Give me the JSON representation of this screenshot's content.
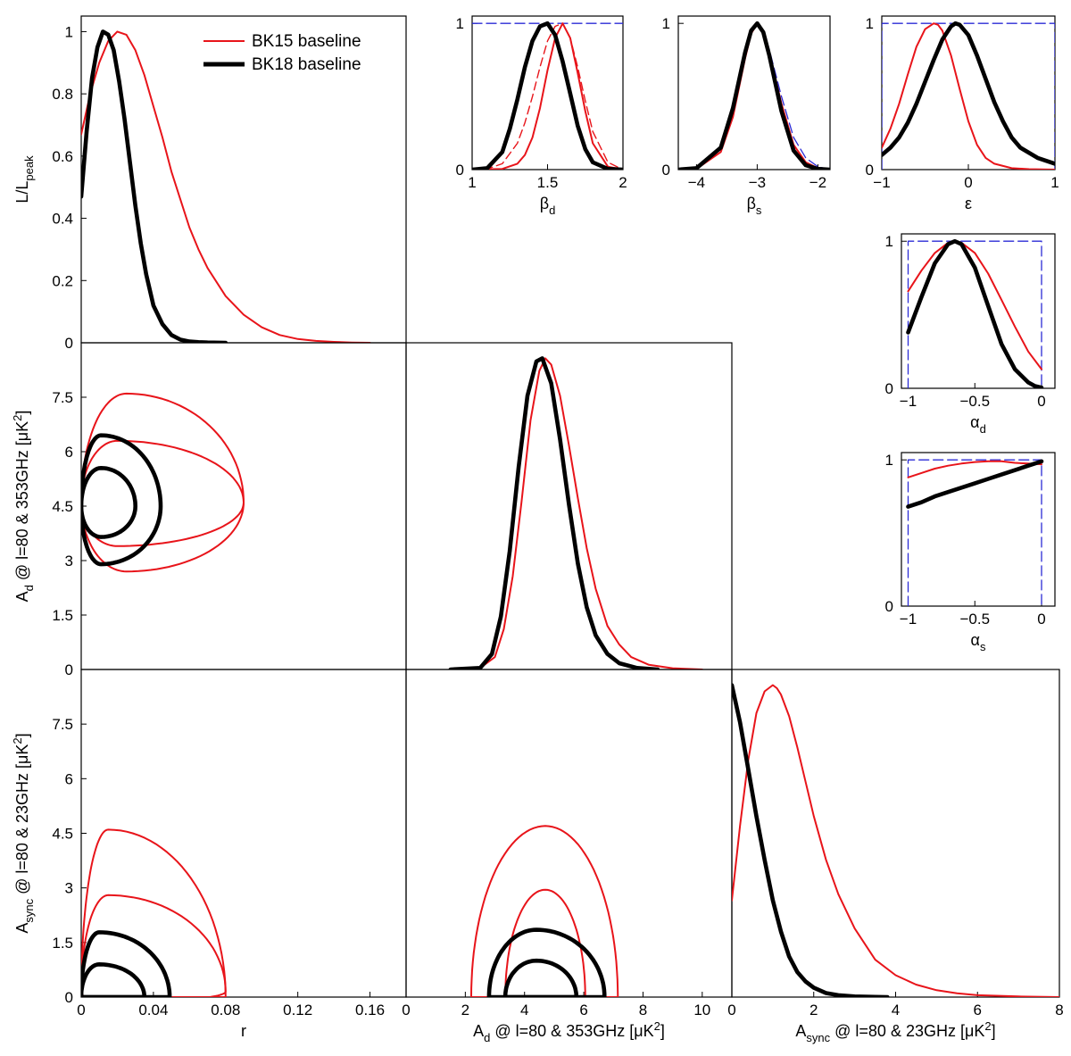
{
  "colors": {
    "bk15": "#e8141a",
    "bk18": "#000000",
    "prior": "#2b2bd6"
  },
  "legend": {
    "bk15": "BK15 baseline",
    "bk18": "BK18 baseline"
  },
  "chart_data": [
    {
      "id": "r-1d",
      "type": "line",
      "xlim": [
        0,
        0.18
      ],
      "ylim": [
        0,
        1.05
      ],
      "xticks": [],
      "yticks": [
        "0",
        "0.2",
        "0.4",
        "0.6",
        "0.8",
        "1"
      ],
      "ylabel": "L/L",
      "ylabel_sub": "peak",
      "series": [
        {
          "name": "BK15 baseline",
          "style": "bk15",
          "x": [
            0,
            0.005,
            0.01,
            0.015,
            0.02,
            0.025,
            0.03,
            0.035,
            0.04,
            0.045,
            0.05,
            0.055,
            0.06,
            0.065,
            0.07,
            0.08,
            0.09,
            0.1,
            0.11,
            0.12,
            0.13,
            0.14,
            0.15,
            0.16
          ],
          "y": [
            0.67,
            0.8,
            0.9,
            0.97,
            1.0,
            0.99,
            0.94,
            0.86,
            0.76,
            0.66,
            0.55,
            0.46,
            0.37,
            0.3,
            0.24,
            0.15,
            0.09,
            0.05,
            0.025,
            0.012,
            0.006,
            0.003,
            0.001,
            0
          ]
        },
        {
          "name": "BK18 baseline",
          "style": "bk18",
          "x": [
            0,
            0.003,
            0.006,
            0.009,
            0.012,
            0.015,
            0.018,
            0.021,
            0.024,
            0.027,
            0.03,
            0.033,
            0.036,
            0.04,
            0.045,
            0.05,
            0.055,
            0.06,
            0.065,
            0.07,
            0.08
          ],
          "y": [
            0.47,
            0.68,
            0.85,
            0.95,
            1.0,
            0.99,
            0.94,
            0.84,
            0.72,
            0.58,
            0.44,
            0.32,
            0.22,
            0.12,
            0.06,
            0.025,
            0.01,
            0.004,
            0.002,
            0.001,
            0
          ]
        }
      ]
    },
    {
      "id": "beta-d",
      "type": "line",
      "xlim": [
        1,
        2
      ],
      "ylim": [
        0,
        1.05
      ],
      "xticks": [
        "1",
        "1.5",
        "2"
      ],
      "yticks": [
        "0",
        "1"
      ],
      "xlabel": "β",
      "xlabel_sub": "d",
      "series": [
        {
          "style": "prior",
          "x": [
            1,
            2
          ],
          "y": [
            1,
            1
          ]
        },
        {
          "style": "bk15dash",
          "x": [
            1.0,
            1.1,
            1.2,
            1.3,
            1.35,
            1.4,
            1.45,
            1.5,
            1.55,
            1.6,
            1.65,
            1.7,
            1.75,
            1.8,
            1.9,
            2.0
          ],
          "y": [
            0,
            0.005,
            0.04,
            0.18,
            0.32,
            0.5,
            0.7,
            0.88,
            0.98,
            1.0,
            0.9,
            0.7,
            0.47,
            0.26,
            0.05,
            0
          ]
        },
        {
          "style": "bk15",
          "x": [
            1.0,
            1.2,
            1.3,
            1.35,
            1.4,
            1.45,
            1.5,
            1.55,
            1.6,
            1.65,
            1.7,
            1.75,
            1.8,
            1.9,
            2.0
          ],
          "y": [
            0,
            0.005,
            0.04,
            0.1,
            0.22,
            0.42,
            0.68,
            0.9,
            1.0,
            0.9,
            0.66,
            0.4,
            0.18,
            0.02,
            0
          ]
        },
        {
          "style": "bk18",
          "x": [
            1.0,
            1.1,
            1.2,
            1.25,
            1.3,
            1.35,
            1.4,
            1.45,
            1.5,
            1.55,
            1.6,
            1.65,
            1.7,
            1.75,
            1.8,
            1.9,
            2.0
          ],
          "y": [
            0,
            0.01,
            0.12,
            0.28,
            0.48,
            0.7,
            0.88,
            0.98,
            1.0,
            0.92,
            0.74,
            0.52,
            0.3,
            0.14,
            0.05,
            0.005,
            0
          ]
        }
      ]
    },
    {
      "id": "beta-s",
      "type": "line",
      "xlim": [
        -4.3,
        -1.8
      ],
      "ylim": [
        0,
        1.05
      ],
      "xticks": [
        "−4",
        "−3",
        "−2"
      ],
      "yticks": [
        "0",
        "1"
      ],
      "xlabel": "β",
      "xlabel_sub": "s",
      "series": [
        {
          "style": "prior",
          "x": [
            -4.3,
            -4.0,
            -3.6,
            -3.4,
            -3.2,
            -3.1,
            -3.0,
            -2.9,
            -2.8,
            -2.6,
            -2.4,
            -2.2,
            -2.0,
            -1.8
          ],
          "y": [
            0,
            0.01,
            0.15,
            0.4,
            0.78,
            0.93,
            1.0,
            0.95,
            0.82,
            0.5,
            0.22,
            0.08,
            0.02,
            0
          ]
        },
        {
          "style": "bk15",
          "x": [
            -4.3,
            -4.0,
            -3.6,
            -3.4,
            -3.2,
            -3.1,
            -3.0,
            -2.9,
            -2.8,
            -2.6,
            -2.4,
            -2.2,
            -2.0,
            -1.8
          ],
          "y": [
            0,
            0.005,
            0.12,
            0.36,
            0.76,
            0.93,
            1.0,
            0.95,
            0.8,
            0.45,
            0.17,
            0.05,
            0.01,
            0
          ]
        },
        {
          "style": "bk18",
          "x": [
            -4.3,
            -4.0,
            -3.6,
            -3.4,
            -3.2,
            -3.1,
            -3.0,
            -2.9,
            -2.8,
            -2.6,
            -2.4,
            -2.2,
            -2.0,
            -1.8
          ],
          "y": [
            0,
            0.01,
            0.15,
            0.42,
            0.8,
            0.95,
            1.0,
            0.94,
            0.78,
            0.4,
            0.13,
            0.03,
            0.005,
            0
          ]
        }
      ]
    },
    {
      "id": "epsilon",
      "type": "line",
      "xlim": [
        -1,
        1
      ],
      "ylim": [
        0,
        1.05
      ],
      "xticks": [
        "−1",
        "0",
        "1"
      ],
      "yticks": [
        "0",
        "1"
      ],
      "xlabel": "ε",
      "series": [
        {
          "style": "prior",
          "x": [
            -1,
            -1,
            1,
            1
          ],
          "y": [
            0,
            1,
            1,
            0
          ]
        },
        {
          "style": "bk15",
          "x": [
            -1.0,
            -0.9,
            -0.8,
            -0.7,
            -0.6,
            -0.5,
            -0.4,
            -0.35,
            -0.3,
            -0.2,
            -0.1,
            0.0,
            0.1,
            0.2,
            0.3,
            0.5,
            0.7,
            1.0
          ],
          "y": [
            0.15,
            0.28,
            0.45,
            0.65,
            0.84,
            0.96,
            1.0,
            0.99,
            0.95,
            0.78,
            0.55,
            0.33,
            0.17,
            0.08,
            0.04,
            0.01,
            0.003,
            0
          ]
        },
        {
          "style": "bk18",
          "x": [
            -1.0,
            -0.9,
            -0.8,
            -0.7,
            -0.6,
            -0.5,
            -0.4,
            -0.3,
            -0.2,
            -0.15,
            -0.1,
            0.0,
            0.1,
            0.2,
            0.3,
            0.4,
            0.5,
            0.6,
            0.8,
            1.0
          ],
          "y": [
            0.1,
            0.15,
            0.22,
            0.32,
            0.45,
            0.6,
            0.75,
            0.89,
            0.98,
            1.0,
            0.99,
            0.92,
            0.78,
            0.62,
            0.46,
            0.33,
            0.22,
            0.15,
            0.08,
            0.04
          ]
        }
      ]
    },
    {
      "id": "alpha-d",
      "type": "line",
      "xlim": [
        -1.05,
        0.1
      ],
      "ylim": [
        0,
        1.05
      ],
      "xticks": [
        "−1",
        "−0.5",
        "0"
      ],
      "yticks": [
        "0",
        "1"
      ],
      "xlabel": "α",
      "xlabel_sub": "d",
      "series": [
        {
          "style": "prior",
          "x": [
            -1,
            -1,
            0,
            0
          ],
          "y": [
            0,
            1,
            1,
            0
          ]
        },
        {
          "style": "bk15",
          "x": [
            -1.0,
            -0.9,
            -0.8,
            -0.7,
            -0.65,
            -0.6,
            -0.5,
            -0.4,
            -0.3,
            -0.2,
            -0.1,
            0.0
          ],
          "y": [
            0.66,
            0.8,
            0.92,
            0.99,
            1.0,
            0.99,
            0.92,
            0.78,
            0.6,
            0.42,
            0.25,
            0.13
          ]
        },
        {
          "style": "bk18",
          "x": [
            -1.0,
            -0.9,
            -0.8,
            -0.7,
            -0.65,
            -0.6,
            -0.5,
            -0.4,
            -0.3,
            -0.2,
            -0.1,
            -0.05,
            0.0
          ],
          "y": [
            0.38,
            0.62,
            0.85,
            0.98,
            1.0,
            0.98,
            0.82,
            0.56,
            0.3,
            0.13,
            0.04,
            0.015,
            0.005
          ]
        }
      ]
    },
    {
      "id": "alpha-s",
      "type": "line",
      "xlim": [
        -1.05,
        0.1
      ],
      "ylim": [
        0,
        1.05
      ],
      "xticks": [
        "−1",
        "−0.5",
        "0"
      ],
      "yticks": [
        "0",
        "1"
      ],
      "xlabel": "α",
      "xlabel_sub": "s",
      "series": [
        {
          "style": "prior",
          "x": [
            -1,
            -1,
            0,
            0
          ],
          "y": [
            0,
            1,
            1,
            0
          ]
        },
        {
          "style": "bk15",
          "x": [
            -1.0,
            -0.9,
            -0.8,
            -0.7,
            -0.6,
            -0.5,
            -0.4,
            -0.3,
            -0.2,
            -0.1,
            0.0
          ],
          "y": [
            0.88,
            0.91,
            0.94,
            0.96,
            0.975,
            0.985,
            0.99,
            0.99,
            0.98,
            0.975,
            0.97
          ]
        },
        {
          "style": "bk18",
          "x": [
            -1.0,
            -0.9,
            -0.8,
            -0.7,
            -0.6,
            -0.5,
            -0.4,
            -0.3,
            -0.2,
            -0.1,
            0.0
          ],
          "y": [
            0.68,
            0.71,
            0.75,
            0.78,
            0.81,
            0.84,
            0.87,
            0.9,
            0.93,
            0.96,
            0.99
          ]
        }
      ]
    },
    {
      "id": "Ad-vs-r",
      "type": "contour",
      "xlim": [
        0,
        0.18
      ],
      "ylim": [
        0,
        9
      ],
      "xticks": [],
      "yticks": [
        "0",
        "1.5",
        "3",
        "4.5",
        "6",
        "7.5"
      ],
      "ylabel": "A  @ l=80 & 353GHz [μK ]",
      "ylabel_sub": "d",
      "contours": [
        {
          "style": "bk15",
          "cx": 0.02,
          "cy": 4.6,
          "rx_pos": 0.07,
          "rx_neg": 0.02,
          "ry_pos": 1.7,
          "ry_neg": 1.2,
          "x_at_zero": 0
        },
        {
          "style": "bk15",
          "cx": 0.025,
          "cy": 4.6,
          "rx_pos": 0.065,
          "rx_neg": 0.025,
          "ry_pos": 3.0,
          "ry_neg": 1.9,
          "x_at_zero": 0
        },
        {
          "style": "bk18",
          "cx": 0.011,
          "cy": 4.5,
          "rx_pos": 0.019,
          "rx_neg": 0.011,
          "ry_pos": 1.05,
          "ry_neg": 0.85,
          "x_at_zero": 0
        },
        {
          "style": "bk18",
          "cx": 0.011,
          "cy": 4.5,
          "rx_pos": 0.033,
          "rx_neg": 0.011,
          "ry_pos": 1.95,
          "ry_neg": 1.6,
          "x_at_zero": 0
        }
      ]
    },
    {
      "id": "Ad-1d",
      "type": "line",
      "xlim": [
        0,
        11
      ],
      "ylim": [
        0,
        1.05
      ],
      "xticks": [],
      "yticks": [],
      "series": [
        {
          "style": "bk15",
          "x": [
            1.5,
            2.5,
            3.0,
            3.3,
            3.6,
            3.9,
            4.2,
            4.5,
            4.7,
            4.9,
            5.2,
            5.5,
            5.8,
            6.1,
            6.4,
            6.8,
            7.2,
            7.6,
            8.2,
            9.0,
            10.0
          ],
          "y": [
            0,
            0.005,
            0.04,
            0.13,
            0.3,
            0.54,
            0.8,
            0.96,
            1.0,
            0.98,
            0.88,
            0.72,
            0.55,
            0.39,
            0.26,
            0.14,
            0.08,
            0.04,
            0.015,
            0.004,
            0
          ]
        },
        {
          "style": "bk18",
          "x": [
            1.5,
            2.5,
            2.9,
            3.2,
            3.5,
            3.8,
            4.1,
            4.4,
            4.6,
            4.9,
            5.2,
            5.5,
            5.8,
            6.1,
            6.4,
            6.8,
            7.2,
            7.8,
            8.5
          ],
          "y": [
            0,
            0.005,
            0.05,
            0.17,
            0.38,
            0.65,
            0.88,
            0.99,
            1.0,
            0.92,
            0.74,
            0.53,
            0.34,
            0.2,
            0.11,
            0.05,
            0.02,
            0.005,
            0
          ]
        }
      ]
    },
    {
      "id": "Async-vs-r",
      "type": "contour",
      "xlim": [
        0,
        0.18
      ],
      "ylim": [
        0,
        9
      ],
      "xticks": [
        "0",
        "0.04",
        "0.08",
        "0.12",
        "0.16"
      ],
      "yticks": [
        "0",
        "1.5",
        "3",
        "4.5",
        "6",
        "7.5"
      ],
      "xlabel": "r",
      "ylabel": "A  @ l=80 & 23GHz [μK ]",
      "ylabel_sub": "sync",
      "contours": [
        {
          "style": "bk15",
          "cx": 0.015,
          "cy": 0.15,
          "rx_pos": 0.065,
          "rx_neg": 0.015,
          "ry_pos": 2.65,
          "ry_neg": 0.3,
          "x_at_zero": 0
        },
        {
          "style": "bk15",
          "cx": 0.015,
          "cy": 0,
          "rx_pos": 0.065,
          "rx_neg": 0.015,
          "ry_pos": 4.6,
          "ry_neg": 0,
          "x_at_zero": 0
        },
        {
          "style": "bk18",
          "cx": 0.01,
          "cy": 0,
          "rx_pos": 0.025,
          "rx_neg": 0.01,
          "ry_pos": 0.9,
          "ry_neg": 0,
          "x_at_zero": 0
        },
        {
          "style": "bk18",
          "cx": 0.01,
          "cy": 0,
          "rx_pos": 0.039,
          "rx_neg": 0.01,
          "ry_pos": 1.78,
          "ry_neg": 0,
          "x_at_zero": 0
        }
      ]
    },
    {
      "id": "Async-vs-Ad",
      "type": "contour",
      "xlim": [
        0,
        11
      ],
      "ylim": [
        0,
        9
      ],
      "xticks": [
        "0",
        "2",
        "4",
        "6",
        "8",
        "10"
      ],
      "yticks": [],
      "xlabel": "A  @ l=80 & 353GHz [μK ]",
      "xlabel_sub": "d",
      "contours": [
        {
          "style": "bk15",
          "cx": 4.7,
          "cy": 0,
          "rx_pos": 1.35,
          "rx_neg": 1.35,
          "ry_pos": 2.95,
          "ry_neg": 0
        },
        {
          "style": "bk15",
          "cx": 4.7,
          "cy": 0,
          "rx_pos": 2.45,
          "rx_neg": 2.5,
          "ry_pos": 4.7,
          "ry_neg": 0
        },
        {
          "style": "bk18",
          "cx": 4.4,
          "cy": 0,
          "rx_pos": 1.35,
          "rx_neg": 1.05,
          "ry_pos": 1.0,
          "ry_neg": 0
        },
        {
          "style": "bk18",
          "cx": 4.4,
          "cy": 0,
          "rx_pos": 2.3,
          "rx_neg": 1.6,
          "ry_pos": 1.85,
          "ry_neg": 0
        }
      ]
    },
    {
      "id": "Async-1d",
      "type": "line",
      "xlim": [
        0,
        8
      ],
      "ylim": [
        0,
        1.05
      ],
      "xticks": [
        "0",
        "2",
        "4",
        "6",
        "8"
      ],
      "yticks": [],
      "xlabel": "A  @ l=80 & 23GHz [μK ]",
      "xlabel_sub": "sync",
      "series": [
        {
          "style": "bk15",
          "x": [
            0,
            0.2,
            0.4,
            0.6,
            0.8,
            1.0,
            1.1,
            1.2,
            1.4,
            1.6,
            1.8,
            2.0,
            2.3,
            2.6,
            3.0,
            3.5,
            4.0,
            4.5,
            5.0,
            5.5,
            6.0,
            7.0,
            8.0
          ],
          "y": [
            0.31,
            0.55,
            0.76,
            0.91,
            0.98,
            1.0,
            0.99,
            0.97,
            0.9,
            0.8,
            0.69,
            0.58,
            0.44,
            0.33,
            0.22,
            0.12,
            0.07,
            0.04,
            0.022,
            0.012,
            0.006,
            0.002,
            0
          ]
        },
        {
          "style": "bk18",
          "x": [
            0,
            0.2,
            0.4,
            0.6,
            0.8,
            1.0,
            1.2,
            1.4,
            1.6,
            1.8,
            2.0,
            2.3,
            2.6,
            3.0,
            3.5,
            3.8
          ],
          "y": [
            1.0,
            0.88,
            0.73,
            0.58,
            0.44,
            0.31,
            0.21,
            0.13,
            0.08,
            0.05,
            0.03,
            0.013,
            0.006,
            0.002,
            0.0005,
            0
          ]
        }
      ]
    }
  ]
}
